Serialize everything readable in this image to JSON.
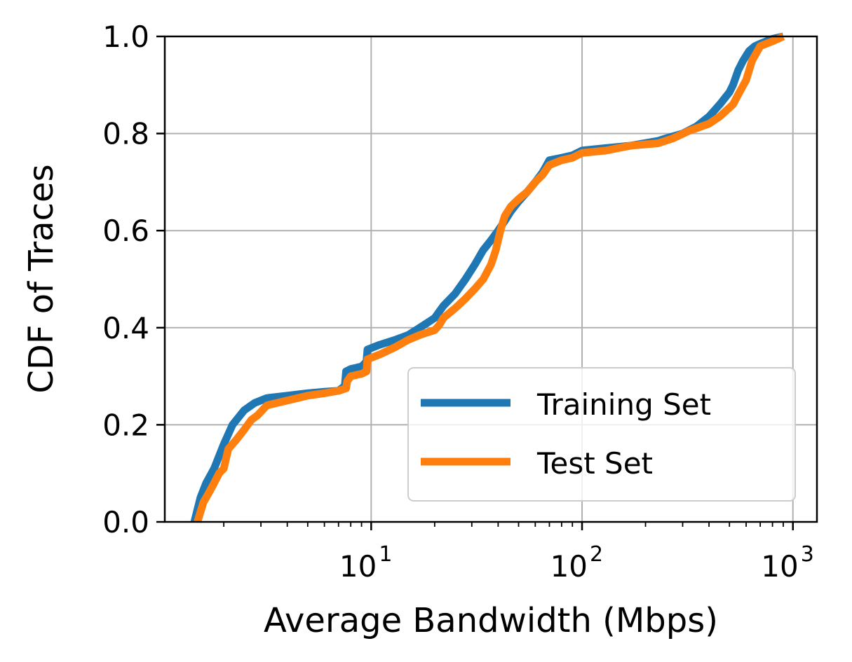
{
  "chart_data": {
    "type": "line",
    "title": "",
    "xlabel": "Average Bandwidth (Mbps)",
    "ylabel": "CDF of Traces",
    "xscale": "log",
    "xlim": [
      1.05,
      1300
    ],
    "ylim": [
      0.0,
      1.0
    ],
    "grid": true,
    "legend_position": "lower right",
    "x_ticks": [
      {
        "value": 10,
        "base": "10",
        "exp": "1"
      },
      {
        "value": 100,
        "base": "10",
        "exp": "2"
      },
      {
        "value": 1000,
        "base": "10",
        "exp": "3"
      }
    ],
    "y_ticks": [
      {
        "value": 0.0,
        "label": "0.0"
      },
      {
        "value": 0.2,
        "label": "0.2"
      },
      {
        "value": 0.4,
        "label": "0.4"
      },
      {
        "value": 0.6,
        "label": "0.6"
      },
      {
        "value": 0.8,
        "label": "0.8"
      },
      {
        "value": 1.0,
        "label": "1.0"
      }
    ],
    "series": [
      {
        "name": "Training Set",
        "color": "#1f77b4",
        "x": [
          1.45,
          1.55,
          1.65,
          1.8,
          2.0,
          2.2,
          2.5,
          2.8,
          3.2,
          4.0,
          5.0,
          6.0,
          7.0,
          7.5,
          7.6,
          8.0,
          9.0,
          9.5,
          9.6,
          11.0,
          13.0,
          15.0,
          17.0,
          20.0,
          22.0,
          25.0,
          28.0,
          31.0,
          34.0,
          37.0,
          40.0,
          43.0,
          46.0,
          50.0,
          55.0,
          60.0,
          65.0,
          70.0,
          80.0,
          90.0,
          100.0,
          130.0,
          170.0,
          230.0,
          250.0,
          300.0,
          350.0,
          400.0,
          450.0,
          500.0,
          520.0,
          550.0,
          580.0,
          620.0,
          660.0,
          700.0,
          800.0,
          900.0
        ],
        "y": [
          0.0,
          0.05,
          0.08,
          0.11,
          0.16,
          0.2,
          0.23,
          0.245,
          0.255,
          0.26,
          0.265,
          0.268,
          0.27,
          0.28,
          0.31,
          0.315,
          0.32,
          0.33,
          0.355,
          0.365,
          0.375,
          0.385,
          0.4,
          0.42,
          0.445,
          0.47,
          0.5,
          0.53,
          0.56,
          0.58,
          0.6,
          0.62,
          0.64,
          0.66,
          0.68,
          0.7,
          0.72,
          0.745,
          0.75,
          0.755,
          0.765,
          0.77,
          0.775,
          0.785,
          0.79,
          0.8,
          0.815,
          0.835,
          0.86,
          0.885,
          0.9,
          0.93,
          0.95,
          0.97,
          0.98,
          0.985,
          0.995,
          1.0
        ]
      },
      {
        "name": "Test Set",
        "color": "#ff7f0e",
        "x": [
          1.5,
          1.6,
          1.7,
          1.8,
          1.9,
          2.0,
          2.1,
          2.3,
          2.5,
          2.7,
          2.9,
          3.2,
          4.0,
          5.0,
          6.0,
          7.0,
          7.6,
          7.7,
          8.0,
          9.0,
          9.5,
          9.6,
          11.0,
          13.0,
          15.0,
          17.0,
          20.0,
          21.0,
          22.0,
          25.0,
          28.0,
          31.0,
          34.0,
          37.0,
          39.0,
          41.0,
          43.0,
          46.0,
          50.0,
          55.0,
          60.0,
          65.0,
          70.0,
          80.0,
          90.0,
          100.0,
          130.0,
          170.0,
          230.0,
          270.0,
          320.0,
          400.0,
          450.0,
          520.0,
          550.0,
          600.0,
          640.0,
          700.0,
          800.0,
          900.0
        ],
        "y": [
          0.0,
          0.04,
          0.06,
          0.08,
          0.1,
          0.11,
          0.15,
          0.17,
          0.19,
          0.21,
          0.22,
          0.24,
          0.25,
          0.26,
          0.265,
          0.27,
          0.275,
          0.29,
          0.3,
          0.305,
          0.31,
          0.335,
          0.345,
          0.36,
          0.375,
          0.385,
          0.395,
          0.405,
          0.42,
          0.44,
          0.46,
          0.48,
          0.5,
          0.53,
          0.56,
          0.6,
          0.63,
          0.65,
          0.665,
          0.68,
          0.7,
          0.715,
          0.735,
          0.745,
          0.75,
          0.76,
          0.765,
          0.775,
          0.78,
          0.79,
          0.805,
          0.82,
          0.835,
          0.86,
          0.88,
          0.91,
          0.95,
          0.98,
          0.99,
          1.0
        ]
      }
    ]
  }
}
